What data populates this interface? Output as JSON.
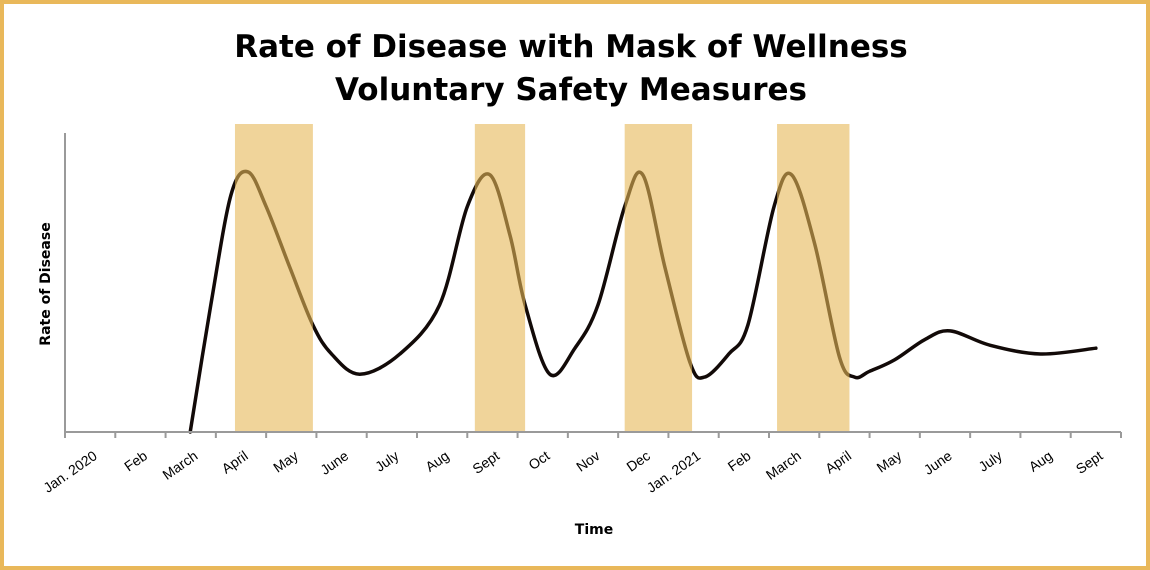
{
  "chart_data": {
    "type": "line",
    "title_line1": "Rate of Disease with Mask of Wellness",
    "title_line2": "Voluntary Safety Measures",
    "xlabel": "Time",
    "ylabel": "Rate of Disease",
    "categories": [
      "Jan. 2020",
      "Feb",
      "March",
      "April",
      "May",
      "June",
      "July",
      "Aug",
      "Sept",
      "Oct",
      "Nov",
      "Dec",
      "Jan. 2021",
      "Feb",
      "March",
      "April",
      "May",
      "June",
      "July",
      "Aug",
      "Sept"
    ],
    "ylim": [
      0,
      100
    ],
    "grid": false,
    "series": [
      {
        "name": "Rate of Disease",
        "color": "#120a08",
        "points": [
          [
            2.49,
            0
          ],
          [
            2.9,
            44
          ],
          [
            3.3,
            82
          ],
          [
            3.64,
            90
          ],
          [
            4.0,
            78
          ],
          [
            4.47,
            57
          ],
          [
            4.93,
            37
          ],
          [
            5.3,
            27
          ],
          [
            5.86,
            20
          ],
          [
            6.66,
            27
          ],
          [
            7.45,
            44
          ],
          [
            8.0,
            78
          ],
          [
            8.45,
            89
          ],
          [
            8.85,
            68
          ],
          [
            9.15,
            44
          ],
          [
            9.64,
            20
          ],
          [
            10.14,
            29
          ],
          [
            10.6,
            44
          ],
          [
            11.13,
            78
          ],
          [
            11.49,
            89
          ],
          [
            11.93,
            57
          ],
          [
            12.43,
            24
          ],
          [
            12.72,
            19
          ],
          [
            13.2,
            27
          ],
          [
            13.58,
            37
          ],
          [
            14.1,
            78
          ],
          [
            14.45,
            89
          ],
          [
            14.91,
            65
          ],
          [
            15.4,
            26
          ],
          [
            15.7,
            19
          ],
          [
            16.0,
            21
          ],
          [
            16.5,
            25
          ],
          [
            17.1,
            32
          ],
          [
            17.6,
            35
          ],
          [
            18.4,
            30
          ],
          [
            19.4,
            27
          ],
          [
            20.5,
            29
          ]
        ]
      }
    ],
    "shaded_periods": [
      {
        "start": 3.38,
        "end": 4.93,
        "color": "#e6b757"
      },
      {
        "start": 8.15,
        "end": 9.15,
        "color": "#e6b757"
      },
      {
        "start": 11.13,
        "end": 12.47,
        "color": "#e6b757"
      },
      {
        "start": 14.16,
        "end": 15.6,
        "color": "#e6b757"
      }
    ]
  }
}
